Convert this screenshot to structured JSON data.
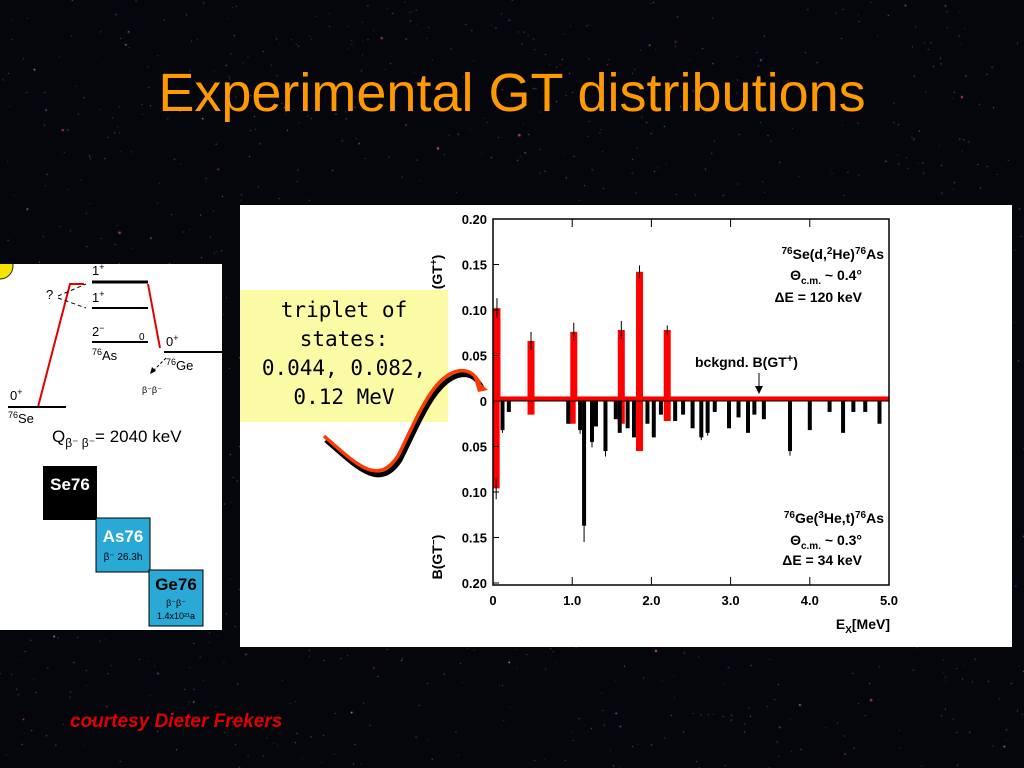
{
  "slide": {
    "title": "Experimental GT distributions",
    "credit": "courtesy Dieter Frekers",
    "callout": [
      "triplet of",
      "states:",
      "0.044, 0.082,",
      "0.12 MeV"
    ],
    "colors": {
      "title": "#ff9900",
      "credit": "#e00000",
      "callout_bg": "#fbfba6",
      "upper_bars": "#ff0000",
      "lower_bars": "#000000"
    }
  },
  "level_scheme": {
    "se_level": "0",
    "se_level_sup": "+",
    "se_nucleus": "Se",
    "se_mass": "76",
    "as_level": "2",
    "as_level_sup": "−",
    "as_level_0": "0",
    "as_nucleus": "As",
    "as_mass": "76",
    "ge_level": "0",
    "ge_level_sup": "+",
    "ge_nucleus": "Ge",
    "ge_mass": "76",
    "level_1a": "1",
    "level_1a_sup": "+",
    "level_1b": "1",
    "level_1b_sup": "+",
    "question": "?",
    "bb_arrow": "β⁻β⁻",
    "q_value": "Q",
    "q_sub": "β⁻ β⁻",
    "q_eq": "= 2040 keV",
    "boxes": [
      {
        "name": "Se76",
        "sub": ""
      },
      {
        "name": "As76",
        "sub": "β⁻ 26.3h"
      },
      {
        "name": "Ge76",
        "sub": "β⁻β⁻",
        "sub2": "1.4x10²¹a"
      }
    ]
  },
  "chart_data": {
    "type": "bar",
    "x_label": "E",
    "x_label_sub": "X",
    "x_label_unit": "[MeV]",
    "xlim": [
      0,
      5
    ],
    "xticks": [
      "0",
      "1.0",
      "2.0",
      "3.0",
      "4.0",
      "5.0"
    ],
    "upper": {
      "ylabel": "B(GT",
      "ylabel_sup": "+",
      "ylabel_end": ")",
      "ylim": [
        0,
        0.2
      ],
      "yticks": [
        "0.20",
        "0.15",
        "0.10",
        "0.05",
        "0"
      ],
      "reaction": {
        "pre_sup": "76",
        "a": "Se(d,",
        "sup2": "2",
        "b": "He)",
        "sup3": "76",
        "c": "As"
      },
      "theta": "Θ",
      "theta_sub": "c.m.",
      "theta_val": " ~ 0.4°",
      "resolution": "ΔE = 120 keV",
      "background_label": "bckgnd. B(GT",
      "background_label_sup": "+",
      "background_label_end": ")",
      "background_level": 0.005,
      "bars": [
        {
          "x": 0.05,
          "y": 0.102,
          "err": 0.011
        },
        {
          "x": 0.48,
          "y": 0.066,
          "err": 0.01
        },
        {
          "x": 1.02,
          "y": 0.076,
          "err": 0.01
        },
        {
          "x": 1.62,
          "y": 0.078,
          "err": 0.01
        },
        {
          "x": 1.85,
          "y": 0.142,
          "err": 0.007
        },
        {
          "x": 2.2,
          "y": 0.078,
          "err": 0.005
        }
      ]
    },
    "lower": {
      "ylabel": "B(GT",
      "ylabel_sup": "−",
      "ylabel_end": ")",
      "ylim": [
        0,
        0.2
      ],
      "yticks": [
        "0.05",
        "0.10",
        "0.15",
        "0.20"
      ],
      "reaction": {
        "pre_sup": "76",
        "a": "Ge(",
        "sup2": "3",
        "b": "He,t)",
        "sup3": "76",
        "c": "As"
      },
      "theta": "Θ",
      "theta_sub": "c.m.",
      "theta_val": " ~ 0.3°",
      "resolution": "ΔE = 34 keV",
      "red_bars": [
        {
          "x": 0.04,
          "y": 0.096,
          "err": 0.012
        },
        {
          "x": 0.48,
          "y": 0.015,
          "err": 0
        },
        {
          "x": 1.0,
          "y": 0.025,
          "err": 0
        },
        {
          "x": 1.62,
          "y": 0.025,
          "err": 0
        },
        {
          "x": 1.85,
          "y": 0.055,
          "err": 0
        },
        {
          "x": 2.2,
          "y": 0.022,
          "err": 0
        }
      ],
      "bars": [
        {
          "x": 0.12,
          "y": 0.032,
          "err": 0.003
        },
        {
          "x": 0.2,
          "y": 0.012,
          "err": 0
        },
        {
          "x": 0.95,
          "y": 0.025,
          "err": 0
        },
        {
          "x": 1.1,
          "y": 0.032,
          "err": 0.004
        },
        {
          "x": 1.15,
          "y": 0.137,
          "err": 0.018
        },
        {
          "x": 1.25,
          "y": 0.045,
          "err": 0.006
        },
        {
          "x": 1.3,
          "y": 0.028,
          "err": 0
        },
        {
          "x": 1.42,
          "y": 0.055,
          "err": 0.006
        },
        {
          "x": 1.55,
          "y": 0.02,
          "err": 0
        },
        {
          "x": 1.6,
          "y": 0.035,
          "err": 0
        },
        {
          "x": 1.7,
          "y": 0.03,
          "err": 0
        },
        {
          "x": 1.78,
          "y": 0.04,
          "err": 0
        },
        {
          "x": 1.95,
          "y": 0.025,
          "err": 0
        },
        {
          "x": 2.03,
          "y": 0.04,
          "err": 0
        },
        {
          "x": 2.12,
          "y": 0.015,
          "err": 0
        },
        {
          "x": 2.3,
          "y": 0.022,
          "err": 0
        },
        {
          "x": 2.4,
          "y": 0.015,
          "err": 0
        },
        {
          "x": 2.52,
          "y": 0.03,
          "err": 0
        },
        {
          "x": 2.63,
          "y": 0.04,
          "err": 0.003
        },
        {
          "x": 2.71,
          "y": 0.035,
          "err": 0.003
        },
        {
          "x": 2.8,
          "y": 0.012,
          "err": 0
        },
        {
          "x": 2.98,
          "y": 0.03,
          "err": 0
        },
        {
          "x": 3.1,
          "y": 0.018,
          "err": 0
        },
        {
          "x": 3.22,
          "y": 0.035,
          "err": 0
        },
        {
          "x": 3.3,
          "y": 0.015,
          "err": 0
        },
        {
          "x": 3.42,
          "y": 0.02,
          "err": 0
        },
        {
          "x": 3.75,
          "y": 0.055,
          "err": 0.005
        },
        {
          "x": 4.0,
          "y": 0.032,
          "err": 0
        },
        {
          "x": 4.25,
          "y": 0.012,
          "err": 0
        },
        {
          "x": 4.42,
          "y": 0.035,
          "err": 0
        },
        {
          "x": 4.55,
          "y": 0.012,
          "err": 0
        },
        {
          "x": 4.7,
          "y": 0.012,
          "err": 0
        },
        {
          "x": 4.88,
          "y": 0.025,
          "err": 0
        }
      ]
    }
  }
}
